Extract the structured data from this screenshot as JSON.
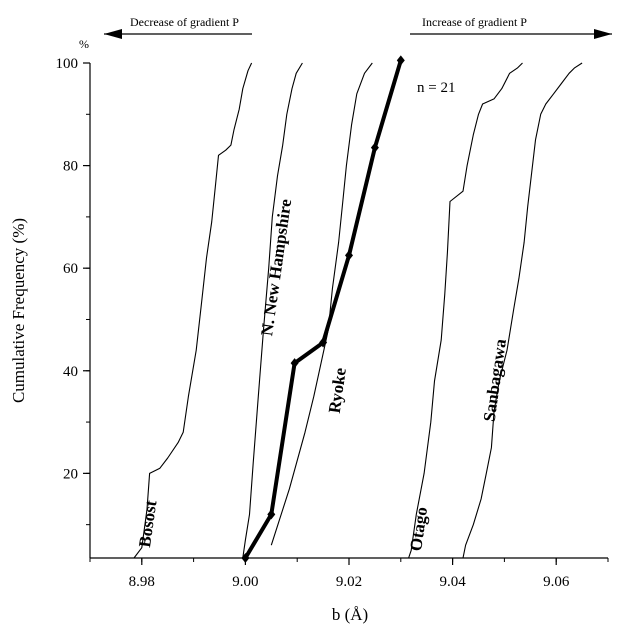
{
  "chart_data": {
    "type": "line",
    "xlabel": "b (Å)",
    "ylabel": "Cumulative Frequency (%)",
    "y_unit_label": "%",
    "xlim": [
      8.97,
      9.07
    ],
    "ylim": [
      3.5,
      100
    ],
    "x_ticks": [
      "8.98",
      "9.00",
      "9.02",
      "9.04",
      "9.06"
    ],
    "y_ticks": [
      "20",
      "40",
      "60",
      "80",
      "100"
    ],
    "annotations": {
      "decrease": "Decrease of gradient P",
      "increase": "Increase of gradient P",
      "n": "n = 21"
    },
    "series": [
      {
        "name": "Bosost",
        "style": "thin",
        "points": [
          [
            8.9785,
            3.5
          ],
          [
            8.98,
            5.5
          ],
          [
            8.981,
            13
          ],
          [
            8.9815,
            20
          ],
          [
            8.9835,
            21
          ],
          [
            8.985,
            23
          ],
          [
            8.987,
            26
          ],
          [
            8.988,
            28
          ],
          [
            8.989,
            35
          ],
          [
            8.9905,
            44
          ],
          [
            8.9915,
            53
          ],
          [
            8.9925,
            62
          ],
          [
            8.9935,
            69
          ],
          [
            8.9942,
            76
          ],
          [
            8.9948,
            82
          ],
          [
            8.9962,
            83
          ],
          [
            8.9972,
            84
          ],
          [
            8.9978,
            87
          ],
          [
            8.9988,
            91
          ],
          [
            8.9995,
            95
          ],
          [
            9.0005,
            98.5
          ],
          [
            9.0012,
            100
          ]
        ]
      },
      {
        "name": "N. New Hampshire",
        "style": "thin",
        "points": [
          [
            8.9995,
            3.5
          ],
          [
            9.0,
            7
          ],
          [
            9.0008,
            12
          ],
          [
            9.0015,
            22
          ],
          [
            9.0025,
            35
          ],
          [
            9.0035,
            48
          ],
          [
            9.0045,
            60
          ],
          [
            9.0052,
            70
          ],
          [
            9.0062,
            78
          ],
          [
            9.0072,
            84
          ],
          [
            9.008,
            90
          ],
          [
            9.009,
            95
          ],
          [
            9.0098,
            98
          ],
          [
            9.011,
            100
          ]
        ]
      },
      {
        "name": "Ryoke",
        "style": "bold",
        "points": [
          [
            9.0,
            3.5
          ],
          [
            9.005,
            12
          ],
          [
            9.0095,
            41.5
          ],
          [
            9.015,
            45.5
          ],
          [
            9.02,
            62.5
          ],
          [
            9.025,
            83.5
          ],
          [
            9.03,
            100.5
          ]
        ]
      },
      {
        "name": "Ryoke (range)",
        "style": "thin",
        "points": [
          [
            9.005,
            6
          ],
          [
            9.0085,
            17
          ],
          [
            9.0115,
            28
          ],
          [
            9.0132,
            35
          ],
          [
            9.0145,
            41
          ],
          [
            9.016,
            48
          ],
          [
            9.0168,
            56
          ],
          [
            9.018,
            65
          ],
          [
            9.0188,
            73
          ],
          [
            9.0195,
            80
          ],
          [
            9.0205,
            88
          ],
          [
            9.0215,
            94
          ],
          [
            9.023,
            98
          ],
          [
            9.0245,
            100
          ]
        ]
      },
      {
        "name": "Otago",
        "style": "thin",
        "points": [
          [
            9.0315,
            3.5
          ],
          [
            9.032,
            5
          ],
          [
            9.033,
            12
          ],
          [
            9.0345,
            20
          ],
          [
            9.0358,
            30
          ],
          [
            9.0365,
            38
          ],
          [
            9.0378,
            46
          ],
          [
            9.0385,
            55
          ],
          [
            9.039,
            63
          ],
          [
            9.0395,
            73
          ],
          [
            9.042,
            75
          ],
          [
            9.0428,
            80
          ],
          [
            9.044,
            86
          ],
          [
            9.045,
            90
          ],
          [
            9.0458,
            92
          ],
          [
            9.048,
            93
          ],
          [
            9.0495,
            95
          ],
          [
            9.051,
            98
          ],
          [
            9.0525,
            99
          ],
          [
            9.0535,
            100
          ]
        ]
      },
      {
        "name": "Sanbagawa",
        "style": "thin",
        "points": [
          [
            9.042,
            3.5
          ],
          [
            9.0425,
            6
          ],
          [
            9.044,
            10
          ],
          [
            9.0455,
            15
          ],
          [
            9.0465,
            20
          ],
          [
            9.0475,
            25
          ],
          [
            9.048,
            32
          ],
          [
            9.049,
            38
          ],
          [
            9.0505,
            44
          ],
          [
            9.0518,
            52
          ],
          [
            9.0528,
            58
          ],
          [
            9.0538,
            65
          ],
          [
            9.0545,
            72
          ],
          [
            9.0552,
            78
          ],
          [
            9.056,
            85
          ],
          [
            9.057,
            90
          ],
          [
            9.058,
            92
          ],
          [
            9.0595,
            94
          ],
          [
            9.061,
            96
          ],
          [
            9.0625,
            98
          ],
          [
            9.0635,
            99
          ],
          [
            9.065,
            100
          ]
        ]
      }
    ],
    "series_labels": [
      {
        "series": "Bosost",
        "text": "Bosost",
        "at": [
          8.9822,
          10
        ],
        "rotate": -82
      },
      {
        "series": "N. New Hampshire",
        "text": "N. New Hampshire",
        "at": [
          9.007,
          60
        ],
        "rotate": -82
      },
      {
        "series": "Ryoke",
        "text": "Ryoke",
        "at": [
          9.0188,
          36
        ],
        "rotate": -82
      },
      {
        "series": "Otago",
        "text": "Otago",
        "at": [
          9.0345,
          9
        ],
        "rotate": -82
      },
      {
        "series": "Sanbagawa",
        "text": "Sanbagawa",
        "at": [
          9.0492,
          38
        ],
        "rotate": -82
      }
    ]
  }
}
